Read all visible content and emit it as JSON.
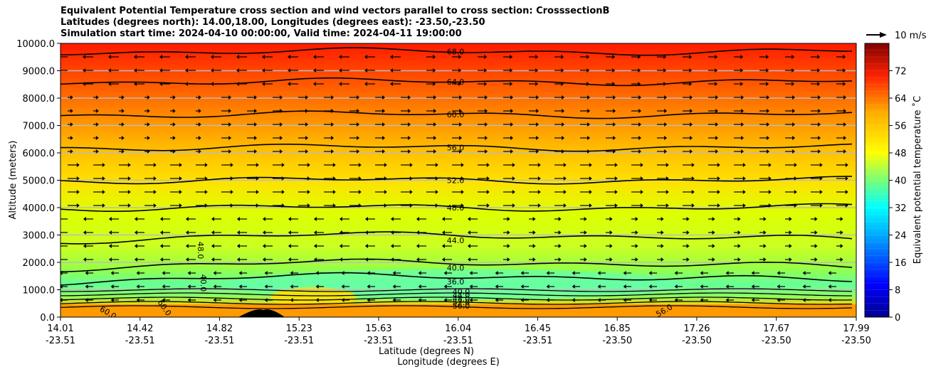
{
  "chart_data": {
    "type": "contour",
    "title_lines": [
      "Equivalent Potential Temperature cross section and wind vectors parallel to cross section: CrosssectionB",
      "Latitudes (degrees north): 14.00,18.00, Longitudes (degrees east): -23.50,-23.50",
      "Simulation start time: 2024-04-10 00:00:00, Valid time: 2024-04-11 19:00:00"
    ],
    "xlabel_lat": "Latitude (degrees N)",
    "xlabel_lon": "Longitude (degrees E)",
    "ylabel": "Altitude (meters)",
    "ylim": [
      0,
      10000
    ],
    "yticks": [
      "0.0",
      "1000.0",
      "2000.0",
      "3000.0",
      "4000.0",
      "5000.0",
      "6000.0",
      "7000.0",
      "8000.0",
      "9000.0",
      "10000.0"
    ],
    "xticks_lat": [
      "14.01",
      "14.42",
      "14.82",
      "15.23",
      "15.63",
      "16.04",
      "16.45",
      "16.85",
      "17.26",
      "17.67",
      "17.99"
    ],
    "xticks_lon": [
      "-23.51",
      "-23.51",
      "-23.51",
      "-23.51",
      "-23.51",
      "-23.51",
      "-23.51",
      "-23.50",
      "-23.50",
      "-23.50",
      "-23.50"
    ],
    "colorbar_label": "Equivalent potential temperature ˚C",
    "colorbar_range": [
      0,
      80
    ],
    "colorbar_ticks": [
      "0",
      "8",
      "16",
      "24",
      "32",
      "40",
      "48",
      "56",
      "64",
      "72"
    ],
    "quiver_key": "10 m/s",
    "contour_levels": [
      {
        "label": "68.0",
        "altitude": 9700
      },
      {
        "label": "64.0",
        "altitude": 8600
      },
      {
        "label": "60.0",
        "altitude": 7400
      },
      {
        "label": "56.0",
        "altitude": 6200
      },
      {
        "label": "52.0",
        "altitude": 5000
      },
      {
        "label": "48.0",
        "altitude": 4000
      },
      {
        "label": "44.0",
        "altitude": 2800
      },
      {
        "label": "40.0",
        "altitude": 1800
      },
      {
        "label": "36.0",
        "altitude": 1300
      }
    ],
    "near_surface_labels": [
      "40.0",
      "44.0",
      "48.0",
      "52.0",
      "56.0"
    ],
    "side_labels": [
      "48.0",
      "40.0",
      "60.0",
      "60.0",
      "56.0"
    ]
  }
}
